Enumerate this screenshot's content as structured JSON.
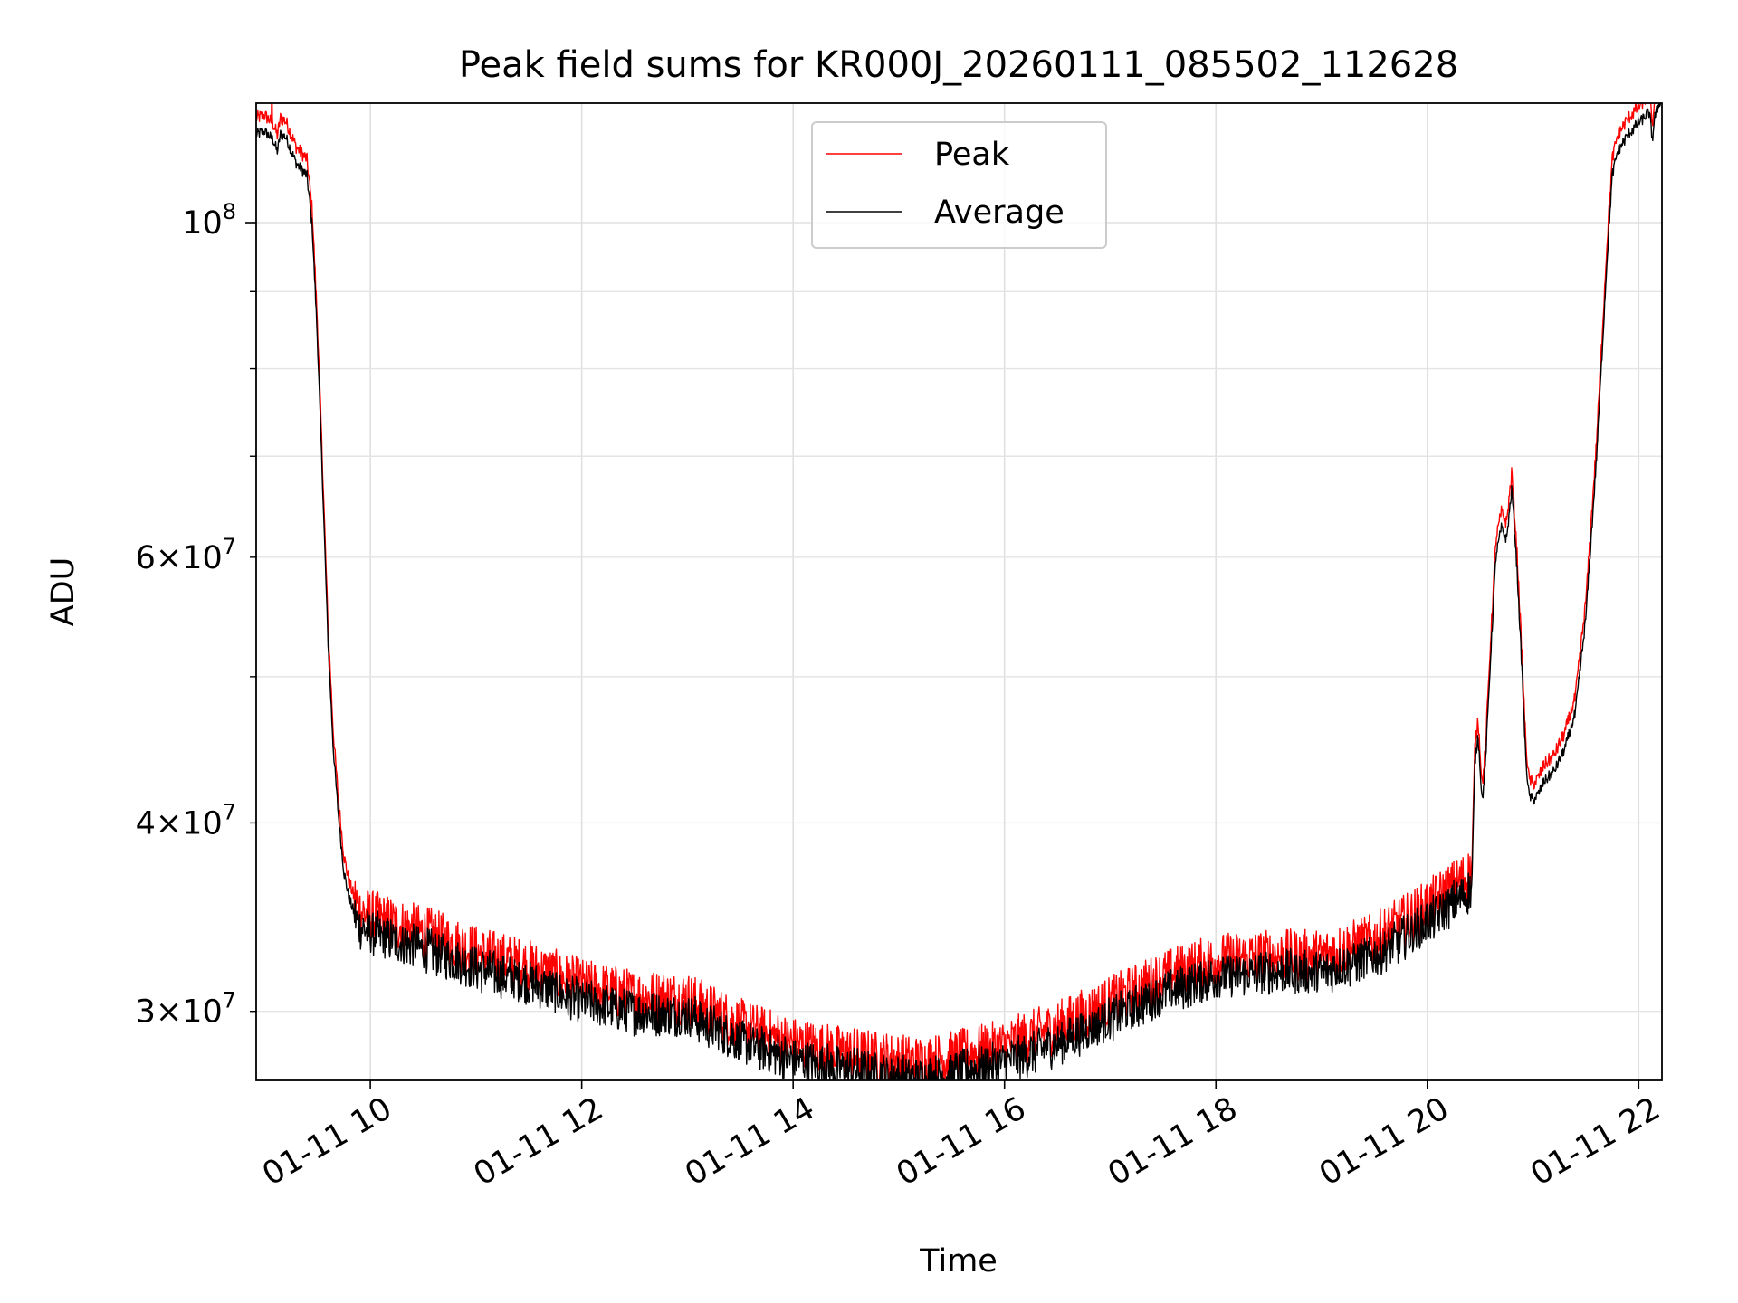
{
  "chart_data": {
    "type": "line",
    "title": "Peak field sums for KR000J_20260111_085502_112628",
    "xlabel": "Time",
    "ylabel": "ADU",
    "yscale": "log",
    "xlim": [
      8.92,
      22.22
    ],
    "ylim": [
      27000000,
      120000000
    ],
    "grid": true,
    "legend": {
      "position": "top-center",
      "entries": [
        "Peak",
        "Average"
      ]
    },
    "x_ticks": [
      {
        "value": 10,
        "label": "01-11 10"
      },
      {
        "value": 12,
        "label": "01-11 12"
      },
      {
        "value": 14,
        "label": "01-11 14"
      },
      {
        "value": 16,
        "label": "01-11 16"
      },
      {
        "value": 18,
        "label": "01-11 18"
      },
      {
        "value": 20,
        "label": "01-11 20"
      },
      {
        "value": 22,
        "label": "01-11 22"
      }
    ],
    "y_major_ticks": [
      {
        "value": 100000000,
        "base": "10",
        "exp": "8"
      }
    ],
    "y_minor_ticks": [
      {
        "value": 30000000,
        "mant": "3",
        "base": "10",
        "exp": "7"
      },
      {
        "value": 40000000,
        "mant": "4",
        "base": "10",
        "exp": "7"
      },
      {
        "value": 50000000
      },
      {
        "value": 60000000,
        "mant": "6",
        "base": "10",
        "exp": "7"
      },
      {
        "value": 70000000
      },
      {
        "value": 80000000
      },
      {
        "value": 90000000
      }
    ],
    "series": [
      {
        "name": "Peak",
        "color": "#ff0000",
        "noise": 0.018,
        "offset": 1.02,
        "spikes": [
          {
            "x": 9.07,
            "y": 125000000
          }
        ]
      },
      {
        "name": "Average",
        "color": "#000000",
        "noise": 0.016,
        "offset": 0.995
      }
    ],
    "x": [
      8.92,
      9.0,
      9.08,
      9.12,
      9.15,
      9.2,
      9.3,
      9.4,
      9.45,
      9.5,
      9.55,
      9.6,
      9.65,
      9.7,
      9.75,
      9.8,
      9.85,
      9.9,
      10.0,
      10.3,
      10.6,
      11.0,
      11.5,
      12.0,
      12.5,
      13.0,
      13.2,
      13.5,
      14.0,
      14.5,
      15.0,
      15.2,
      15.5,
      16.0,
      16.5,
      17.0,
      17.5,
      18.0,
      18.5,
      19.0,
      19.5,
      20.0,
      20.3,
      20.42,
      20.45,
      20.48,
      20.52,
      20.55,
      20.6,
      20.65,
      20.7,
      20.75,
      20.8,
      20.85,
      20.9,
      20.93,
      20.96,
      21.0,
      21.05,
      21.1,
      21.2,
      21.3,
      21.4,
      21.5,
      21.6,
      21.7,
      21.75,
      21.8,
      21.9,
      22.0,
      22.1,
      22.13,
      22.15,
      22.22
    ],
    "y": [
      115000000,
      115500000,
      114000000,
      112000000,
      115000000,
      114500000,
      110000000,
      108000000,
      100000000,
      84000000,
      67000000,
      53000000,
      45000000,
      40500000,
      37300000,
      35800000,
      35000000,
      34300000,
      34000000,
      33500000,
      33000000,
      32200000,
      31500000,
      30600000,
      30100000,
      30000000,
      29500000,
      28800000,
      28000000,
      27600000,
      27300000,
      27200000,
      27400000,
      27900000,
      28700000,
      29800000,
      31000000,
      31800000,
      32000000,
      32000000,
      32800000,
      34500000,
      35800000,
      36300000,
      44000000,
      46000000,
      41500000,
      44000000,
      52000000,
      60500000,
      63000000,
      62000000,
      67000000,
      59000000,
      50000000,
      44500000,
      42000000,
      41600000,
      42000000,
      42800000,
      43500000,
      45000000,
      47500000,
      55000000,
      70000000,
      95000000,
      108000000,
      112000000,
      115000000,
      117000000,
      119000000,
      114000000,
      118000000,
      122000000
    ]
  }
}
